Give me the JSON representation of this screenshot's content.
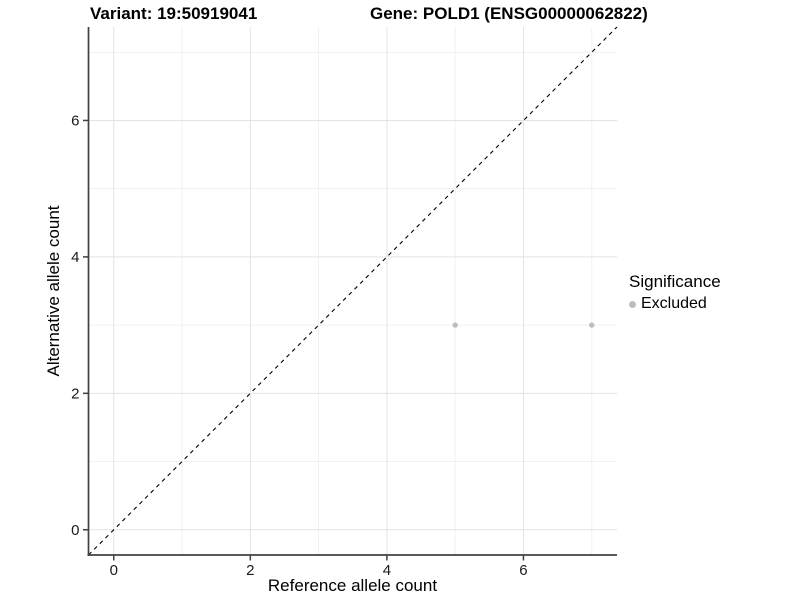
{
  "titles": {
    "left": "Variant: 19:50919041",
    "right": "Gene: POLD1 (ENSG00000062822)"
  },
  "chart_data": {
    "type": "scatter",
    "xlabel": "Reference allele count",
    "ylabel": "Alternative allele count",
    "xlim": [
      -0.37,
      7.37
    ],
    "ylim": [
      -0.37,
      7.37
    ],
    "x_major_ticks": [
      0,
      2,
      4,
      6
    ],
    "y_major_ticks": [
      0,
      2,
      4,
      6
    ],
    "x_tick_labels": [
      "0",
      "2",
      "4",
      "6"
    ],
    "y_tick_labels": [
      "0",
      "2",
      "4",
      "6"
    ],
    "x_minor_gridlines": [
      1,
      3,
      5,
      7
    ],
    "y_minor_gridlines": [
      1,
      3,
      5,
      7
    ],
    "grid": true,
    "identity_line": {
      "style": "dashed",
      "color": "#000000",
      "from": [
        -0.37,
        -0.37
      ],
      "to": [
        7.37,
        7.37
      ]
    },
    "series": [
      {
        "name": "Excluded",
        "color": "#bdbdbd",
        "points": [
          {
            "x": 5,
            "y": 3
          },
          {
            "x": 7,
            "y": 3
          }
        ]
      }
    ],
    "legend": {
      "position": "right",
      "title": "Significance",
      "items": [
        {
          "label": "Excluded",
          "color": "#bdbdbd",
          "marker": "dot"
        }
      ]
    },
    "style_colors": {
      "axis_line": "#404040",
      "tick_mark": "#404040",
      "tick_label": "#1a1a1a",
      "major_grid": "#e3e3e3",
      "minor_grid": "#f1f1f1",
      "background": "#ffffff"
    }
  }
}
